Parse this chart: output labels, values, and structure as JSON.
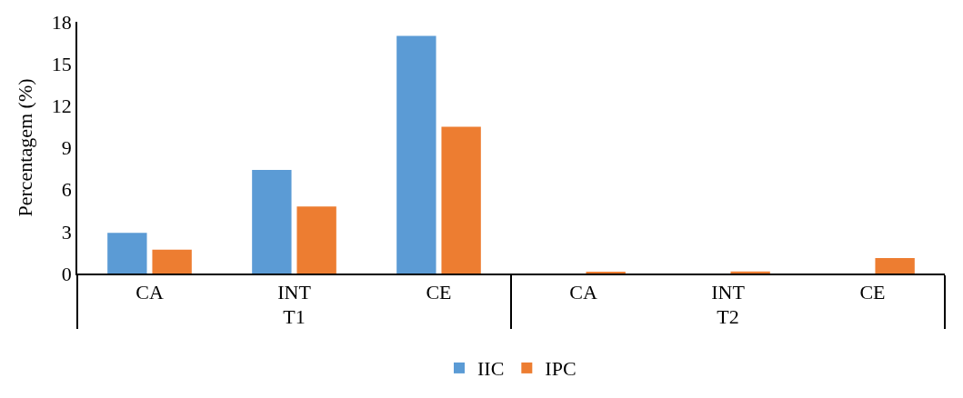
{
  "chart_data": {
    "type": "bar",
    "ylabel": "Percentagem (%)",
    "categories": [
      "CA",
      "INT",
      "CE",
      "CA",
      "INT",
      "CE"
    ],
    "annotations": [
      "T1",
      "T2"
    ],
    "series": [
      {
        "name": "IIC",
        "color": "#5b9bd5",
        "values": [
          2.9,
          7.4,
          17.0,
          0,
          0,
          0
        ]
      },
      {
        "name": "IPC",
        "color": "#ed7d31",
        "values": [
          1.7,
          4.8,
          10.5,
          0.1,
          0.15,
          1.1
        ]
      }
    ],
    "ylim": [
      0,
      18
    ],
    "yticks": [
      0,
      3,
      6,
      9,
      12,
      15,
      18
    ],
    "grid": false,
    "legend": "bottom"
  }
}
